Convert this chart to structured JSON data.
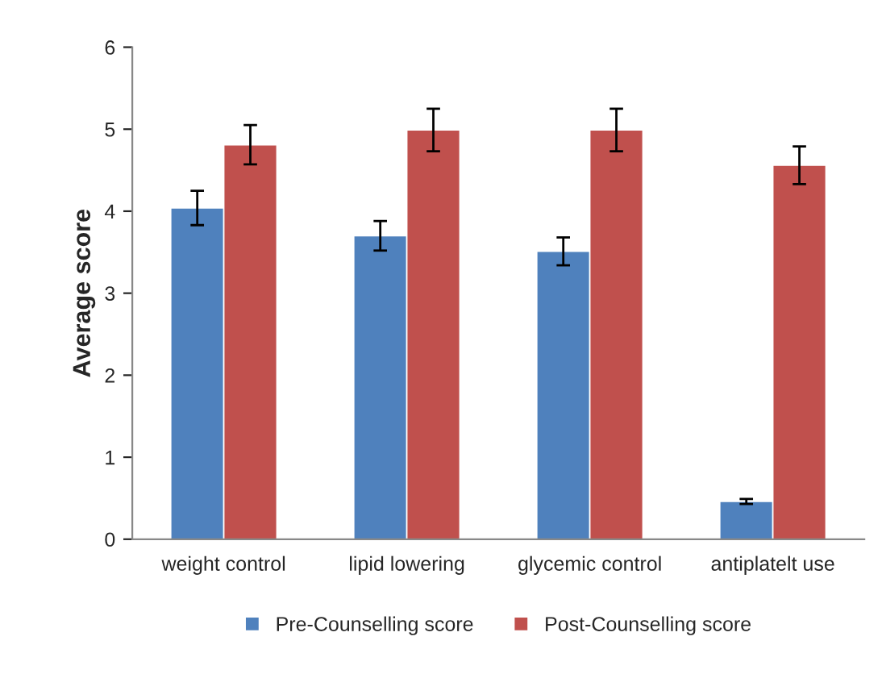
{
  "chart_data": {
    "type": "bar",
    "ylabel": "Average score",
    "categories": [
      "weight control",
      "lipid lowering",
      "glycemic control",
      "antiplatelt use"
    ],
    "series": [
      {
        "name": "Pre-Counselling score",
        "color": "#4f81bd",
        "values": [
          4.04,
          3.7,
          3.51,
          0.46
        ],
        "errors": [
          0.21,
          0.18,
          0.17,
          0.03
        ]
      },
      {
        "name": "Post-Counselling score",
        "color": "#c0504d",
        "values": [
          4.81,
          4.99,
          4.99,
          4.56
        ],
        "errors": [
          0.24,
          0.26,
          0.26,
          0.23
        ]
      }
    ],
    "ylim": [
      0,
      6
    ],
    "yticks": [
      0,
      1,
      2,
      3,
      4,
      5,
      6
    ],
    "grid": false,
    "legend": "bottom"
  }
}
